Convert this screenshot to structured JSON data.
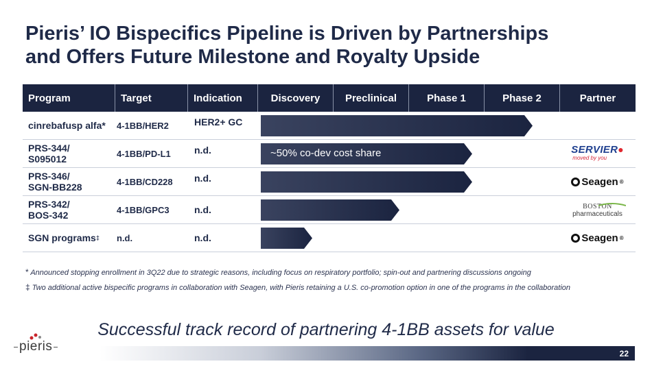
{
  "title": {
    "line1": "Pieris’ IO Bispecifics Pipeline is Driven by Partnerships",
    "line2": "and Offers Future Milestone and Royalty Upside"
  },
  "table": {
    "headers": [
      "Program",
      "Target",
      "Indication",
      "Discovery",
      "Preclinical",
      "Phase 1",
      "Phase 2",
      "Partner"
    ],
    "rows": [
      {
        "program_line1": "cinrebafusp alfa*",
        "program_line2": "",
        "target": "4-1BB/HER2",
        "indication": "HER2+ GC",
        "stage_progress": 0.9,
        "bar_label": "",
        "partner": ""
      },
      {
        "program_line1": "PRS-344/",
        "program_line2": "S095012",
        "target": "4-1BB/PD-L1",
        "indication": "n.d.",
        "stage_progress": 0.7,
        "bar_label": "~50% co-dev cost share",
        "partner": "Servier"
      },
      {
        "program_line1": "PRS-346/",
        "program_line2": "SGN-BB228",
        "target": "4-1BB/CD228",
        "indication": "n.d.",
        "stage_progress": 0.7,
        "bar_label": "",
        "partner": "Seagen"
      },
      {
        "program_line1": "PRS-342/",
        "program_line2": "BOS-342",
        "target": "4-1BB/GPC3",
        "indication": "n.d.",
        "stage_progress": 0.46,
        "bar_label": "",
        "partner": "Boston Pharmaceuticals"
      },
      {
        "program_line1": "SGN programs",
        "program_line2": "",
        "program_sup": "‡",
        "target": "n.d.",
        "indication": "n.d.",
        "stage_progress": 0.17,
        "bar_label": "",
        "partner": "Seagen"
      }
    ]
  },
  "partners": {
    "servier_name": "SERVIER",
    "servier_tagline": "moved by you",
    "seagen_name": "Seagen",
    "seagen_suffix": "®",
    "boston_line1": "BOSTON",
    "boston_line2": "pharmaceuticals"
  },
  "footnotes": {
    "fn1_mark": "*",
    "fn1_text": "Announced stopping enrollment in 3Q22 due to strategic reasons, including focus on respiratory portfolio; spin-out and partnering discussions ongoing",
    "fn2_mark": "‡",
    "fn2_text": "Two  additional active bispecific programs in collaboration with  Seagen, with  Pieris retaining a U.S. co-promotion option in one of the programs in the collaboration"
  },
  "tagline": "Successful track record of partnering 4-1BB assets for value",
  "logo_text": "pieris",
  "page_number": "22",
  "colors": {
    "navy": "#1b2440",
    "bar_dark": "#2a334f",
    "accent_red": "#e0282f"
  }
}
